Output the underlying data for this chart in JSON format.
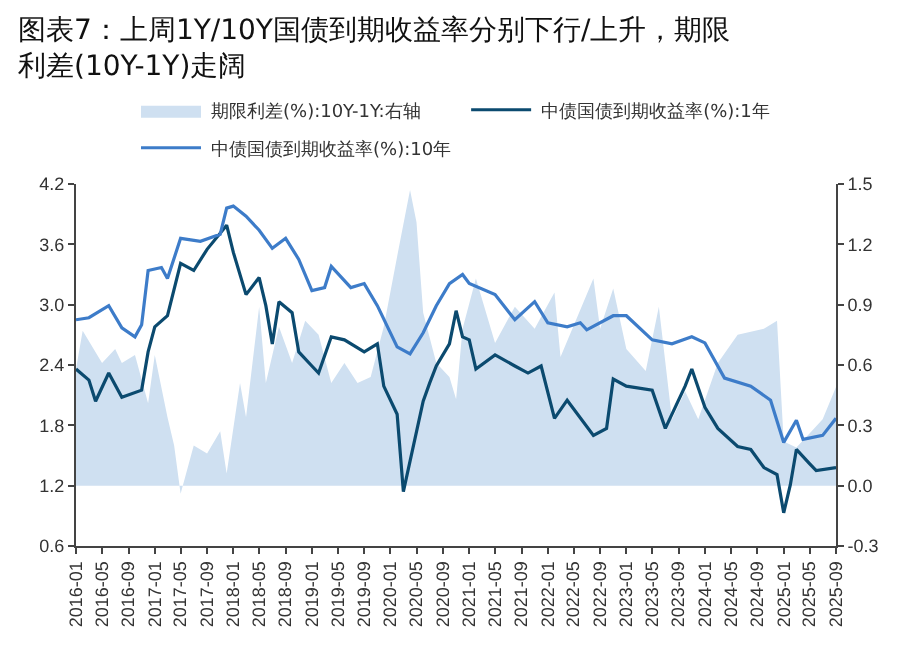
{
  "chart_data": {
    "type": "line",
    "title": "图表7：上周1Y/10Y国债到期收益率分别下行/上升，期限利差(10Y-1Y)走阔",
    "series": [
      {
        "name": "期限利差(%):10Y-1Y:右轴",
        "type": "area",
        "axis": "y2",
        "color": "#cfe0f1",
        "x": [
          "2016-01",
          "2016-02",
          "2016-05",
          "2016-07",
          "2016-08",
          "2016-10",
          "2016-12",
          "2017-01",
          "2017-03",
          "2017-04",
          "2017-05",
          "2017-07",
          "2017-09",
          "2017-11",
          "2017-12",
          "2018-02",
          "2018-03",
          "2018-05",
          "2018-06",
          "2018-08",
          "2018-10",
          "2018-12",
          "2019-02",
          "2019-04",
          "2019-06",
          "2019-08",
          "2019-10",
          "2019-12",
          "2020-02",
          "2020-04",
          "2020-05",
          "2020-06",
          "2020-08",
          "2020-10",
          "2020-11",
          "2020-12",
          "2021-02",
          "2021-05",
          "2021-08",
          "2021-11",
          "2022-02",
          "2022-03",
          "2022-08",
          "2022-09",
          "2022-11",
          "2023-01",
          "2023-04",
          "2023-06",
          "2023-08",
          "2023-10",
          "2023-12",
          "2024-03",
          "2024-06",
          "2024-10",
          "2024-12",
          "2025-01",
          "2025-03",
          "2025-05",
          "2025-07",
          "2025-09"
        ],
        "values": [
          0.58,
          0.77,
          0.61,
          0.68,
          0.61,
          0.65,
          0.41,
          0.65,
          0.34,
          0.2,
          -0.04,
          0.2,
          0.16,
          0.27,
          0.06,
          0.51,
          0.34,
          0.89,
          0.51,
          0.79,
          0.61,
          0.82,
          0.75,
          0.51,
          0.61,
          0.51,
          0.54,
          0.79,
          1.14,
          1.47,
          1.31,
          0.86,
          0.61,
          0.54,
          0.43,
          0.78,
          1.03,
          0.71,
          0.89,
          0.78,
          0.96,
          0.64,
          1.03,
          0.78,
          0.98,
          0.68,
          0.57,
          0.89,
          0.33,
          0.47,
          0.33,
          0.61,
          0.75,
          0.78,
          0.82,
          0.22,
          0.19,
          0.26,
          0.33,
          0.49
        ]
      },
      {
        "name": "中债国债到期收益率(%):1年",
        "color": "#0b4a6f",
        "x": [
          "2016-01",
          "2016-03",
          "2016-04",
          "2016-06",
          "2016-08",
          "2016-11",
          "2016-12",
          "2017-01",
          "2017-03",
          "2017-05",
          "2017-07",
          "2017-09",
          "2017-12",
          "2018-01",
          "2018-03",
          "2018-05",
          "2018-06",
          "2018-07",
          "2018-08",
          "2018-10",
          "2018-11",
          "2019-01",
          "2019-02",
          "2019-04",
          "2019-06",
          "2019-09",
          "2019-11",
          "2019-12",
          "2020-02",
          "2020-03",
          "2020-06",
          "2020-07",
          "2020-08",
          "2020-10",
          "2020-11",
          "2020-12",
          "2021-01",
          "2021-02",
          "2021-05",
          "2021-08",
          "2021-10",
          "2021-12",
          "2022-02",
          "2022-04",
          "2022-08",
          "2022-10",
          "2022-11",
          "2023-01",
          "2023-05",
          "2023-07",
          "2023-10",
          "2023-11",
          "2024-01",
          "2024-03",
          "2024-06",
          "2024-08",
          "2024-10",
          "2024-12",
          "2025-01",
          "2025-02",
          "2025-03",
          "2025-05",
          "2025-06",
          "2025-09"
        ],
        "values": [
          2.36,
          2.25,
          2.04,
          2.32,
          2.08,
          2.15,
          2.53,
          2.78,
          2.89,
          3.41,
          3.34,
          3.55,
          3.79,
          3.52,
          3.1,
          3.27,
          2.99,
          2.61,
          3.03,
          2.92,
          2.53,
          2.39,
          2.32,
          2.68,
          2.65,
          2.53,
          2.61,
          2.19,
          1.91,
          1.14,
          2.04,
          2.22,
          2.39,
          2.61,
          2.94,
          2.68,
          2.65,
          2.36,
          2.5,
          2.39,
          2.32,
          2.39,
          1.87,
          2.05,
          1.7,
          1.77,
          2.26,
          2.19,
          2.15,
          1.77,
          2.19,
          2.36,
          1.98,
          1.77,
          1.59,
          1.56,
          1.38,
          1.31,
          0.93,
          1.21,
          1.56,
          1.42,
          1.35,
          1.38
        ]
      },
      {
        "name": "中债国债到期收益率(%):10年",
        "color": "#3d7cc9",
        "x": [
          "2016-01",
          "2016-03",
          "2016-06",
          "2016-08",
          "2016-10",
          "2016-11",
          "2016-12",
          "2017-02",
          "2017-03",
          "2017-05",
          "2017-08",
          "2017-11",
          "2017-12",
          "2018-01",
          "2018-03",
          "2018-05",
          "2018-07",
          "2018-09",
          "2018-11",
          "2019-01",
          "2019-03",
          "2019-04",
          "2019-07",
          "2019-09",
          "2019-11",
          "2020-02",
          "2020-04",
          "2020-06",
          "2020-08",
          "2020-10",
          "2020-12",
          "2021-01",
          "2021-05",
          "2021-08",
          "2021-11",
          "2022-01",
          "2022-04",
          "2022-06",
          "2022-07",
          "2022-11",
          "2023-01",
          "2023-05",
          "2023-08",
          "2023-11",
          "2024-01",
          "2024-04",
          "2024-08",
          "2024-11",
          "2025-01",
          "2025-03",
          "2025-04",
          "2025-07",
          "2025-09"
        ],
        "values": [
          2.85,
          2.87,
          2.99,
          2.77,
          2.68,
          2.8,
          3.34,
          3.37,
          3.26,
          3.66,
          3.63,
          3.7,
          3.96,
          3.98,
          3.88,
          3.74,
          3.56,
          3.66,
          3.45,
          3.14,
          3.17,
          3.38,
          3.17,
          3.21,
          2.99,
          2.58,
          2.51,
          2.72,
          2.99,
          3.21,
          3.3,
          3.21,
          3.1,
          2.85,
          3.03,
          2.82,
          2.78,
          2.82,
          2.75,
          2.89,
          2.89,
          2.65,
          2.61,
          2.68,
          2.62,
          2.27,
          2.19,
          2.05,
          1.63,
          1.85,
          1.66,
          1.7,
          1.87
        ]
      }
    ],
    "xlim": [
      "2016-01",
      "2025-09"
    ],
    "xticks": [
      {
        "value": "2016-01",
        "label": "2016-01"
      },
      {
        "value": "2016-05",
        "label": "2016-05"
      },
      {
        "value": "2016-09",
        "label": "2016-09"
      },
      {
        "value": "2017-01",
        "label": "2017-01"
      },
      {
        "value": "2017-05",
        "label": "2017-05"
      },
      {
        "value": "2017-09",
        "label": "2017-09"
      },
      {
        "value": "2018-01",
        "label": "2018-01"
      },
      {
        "value": "2018-05",
        "label": "2018-05"
      },
      {
        "value": "2018-09",
        "label": "2018-09"
      },
      {
        "value": "2019-01",
        "label": "2019-01"
      },
      {
        "value": "2019-05",
        "label": "2019-05"
      },
      {
        "value": "2019-09",
        "label": "2019-09"
      },
      {
        "value": "2020-01",
        "label": "2020-01"
      },
      {
        "value": "2020-05",
        "label": "2020-05"
      },
      {
        "value": "2020-09",
        "label": "2020-09"
      },
      {
        "value": "2021-01",
        "label": "2021-01"
      },
      {
        "value": "2021-05",
        "label": "2021-05"
      },
      {
        "value": "2021-09",
        "label": "2021-09"
      },
      {
        "value": "2022-01",
        "label": "2022-01"
      },
      {
        "value": "2022-05",
        "label": "2022-05"
      },
      {
        "value": "2022-09",
        "label": "2022-09"
      },
      {
        "value": "2023-01",
        "label": "2023-01"
      },
      {
        "value": "2023-05",
        "label": "2023-05"
      },
      {
        "value": "2023-09",
        "label": "2023-09"
      },
      {
        "value": "2024-01",
        "label": "2024-01"
      },
      {
        "value": "2024-05",
        "label": "2024-05"
      },
      {
        "value": "2024-09",
        "label": "2024-09"
      },
      {
        "value": "2025-01",
        "label": "2025-01"
      },
      {
        "value": "2025-05",
        "label": "2025-05"
      },
      {
        "value": "2025-09",
        "label": "2025-09"
      }
    ],
    "ylim": [
      0.6,
      4.2
    ],
    "yticks": [
      0.6,
      1.2,
      1.8,
      2.4,
      {
        "value": 3,
        "label": "3.0"
      },
      3.6,
      4.2
    ],
    "y2lim": [
      -0.3,
      1.5
    ],
    "y2ticks": [
      -0.3,
      {
        "value": 0,
        "label": "0.0"
      },
      0.3,
      0.6,
      0.9,
      1.2,
      1.5
    ],
    "grid": false,
    "legend": "top"
  }
}
